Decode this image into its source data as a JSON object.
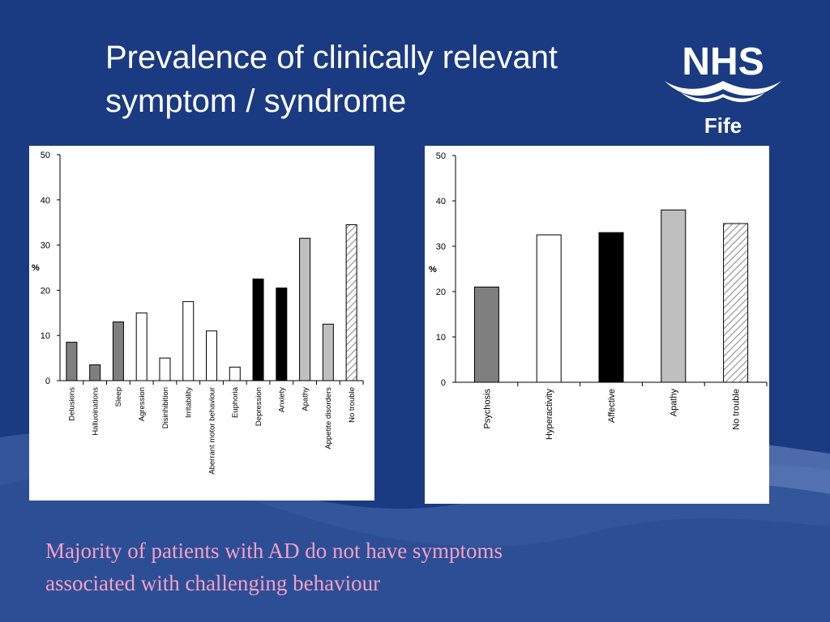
{
  "slide": {
    "title_line1": "Prevalence of clinically relevant",
    "title_line2": "symptom / syndrome",
    "caption_line1": "Majority of patients with AD do not have symptoms",
    "caption_line2": "associated with challenging behaviour"
  },
  "logo": {
    "text": "NHS",
    "subtext": "Fife"
  },
  "colors": {
    "background": "#1a3a82",
    "wave": "#4a6aab",
    "caption": "#f4a0c8",
    "gray": "#7f7f7f",
    "white": "#ffffff",
    "black": "#000000",
    "light_gray": "#bfbfbf"
  },
  "chart_data": [
    {
      "type": "bar",
      "ylabel": "%",
      "ylim": [
        0,
        50
      ],
      "yticks": [
        "0",
        "10",
        "20",
        "30",
        "40",
        "50"
      ],
      "categories": [
        "Delusions",
        "Halluoinations",
        "Sleep",
        "Agression",
        "Disinhibition",
        "Irritability",
        "Aberrant motor behaviour",
        "Euphoria",
        "Depression",
        "Anxiety",
        "Apathy",
        "Appetite disorders",
        "No trouble"
      ],
      "values": [
        8.5,
        3.5,
        13,
        15,
        5,
        17.5,
        11,
        3,
        22.5,
        20.5,
        31.5,
        12.5,
        34.5
      ],
      "fills": [
        "gray",
        "gray",
        "gray",
        "white",
        "white",
        "white",
        "white",
        "white",
        "black",
        "black",
        "light_gray",
        "light_gray",
        "hatched"
      ]
    },
    {
      "type": "bar",
      "ylabel": "%",
      "ylim": [
        0,
        50
      ],
      "yticks": [
        "0",
        "10",
        "20",
        "30",
        "40",
        "50"
      ],
      "categories": [
        "Psychosis",
        "Hyperactivity",
        "Affective",
        "Apathy",
        "No trouble"
      ],
      "values": [
        21,
        32.5,
        33,
        38,
        35
      ],
      "fills": [
        "gray",
        "white",
        "black",
        "light_gray",
        "hatched"
      ]
    }
  ]
}
